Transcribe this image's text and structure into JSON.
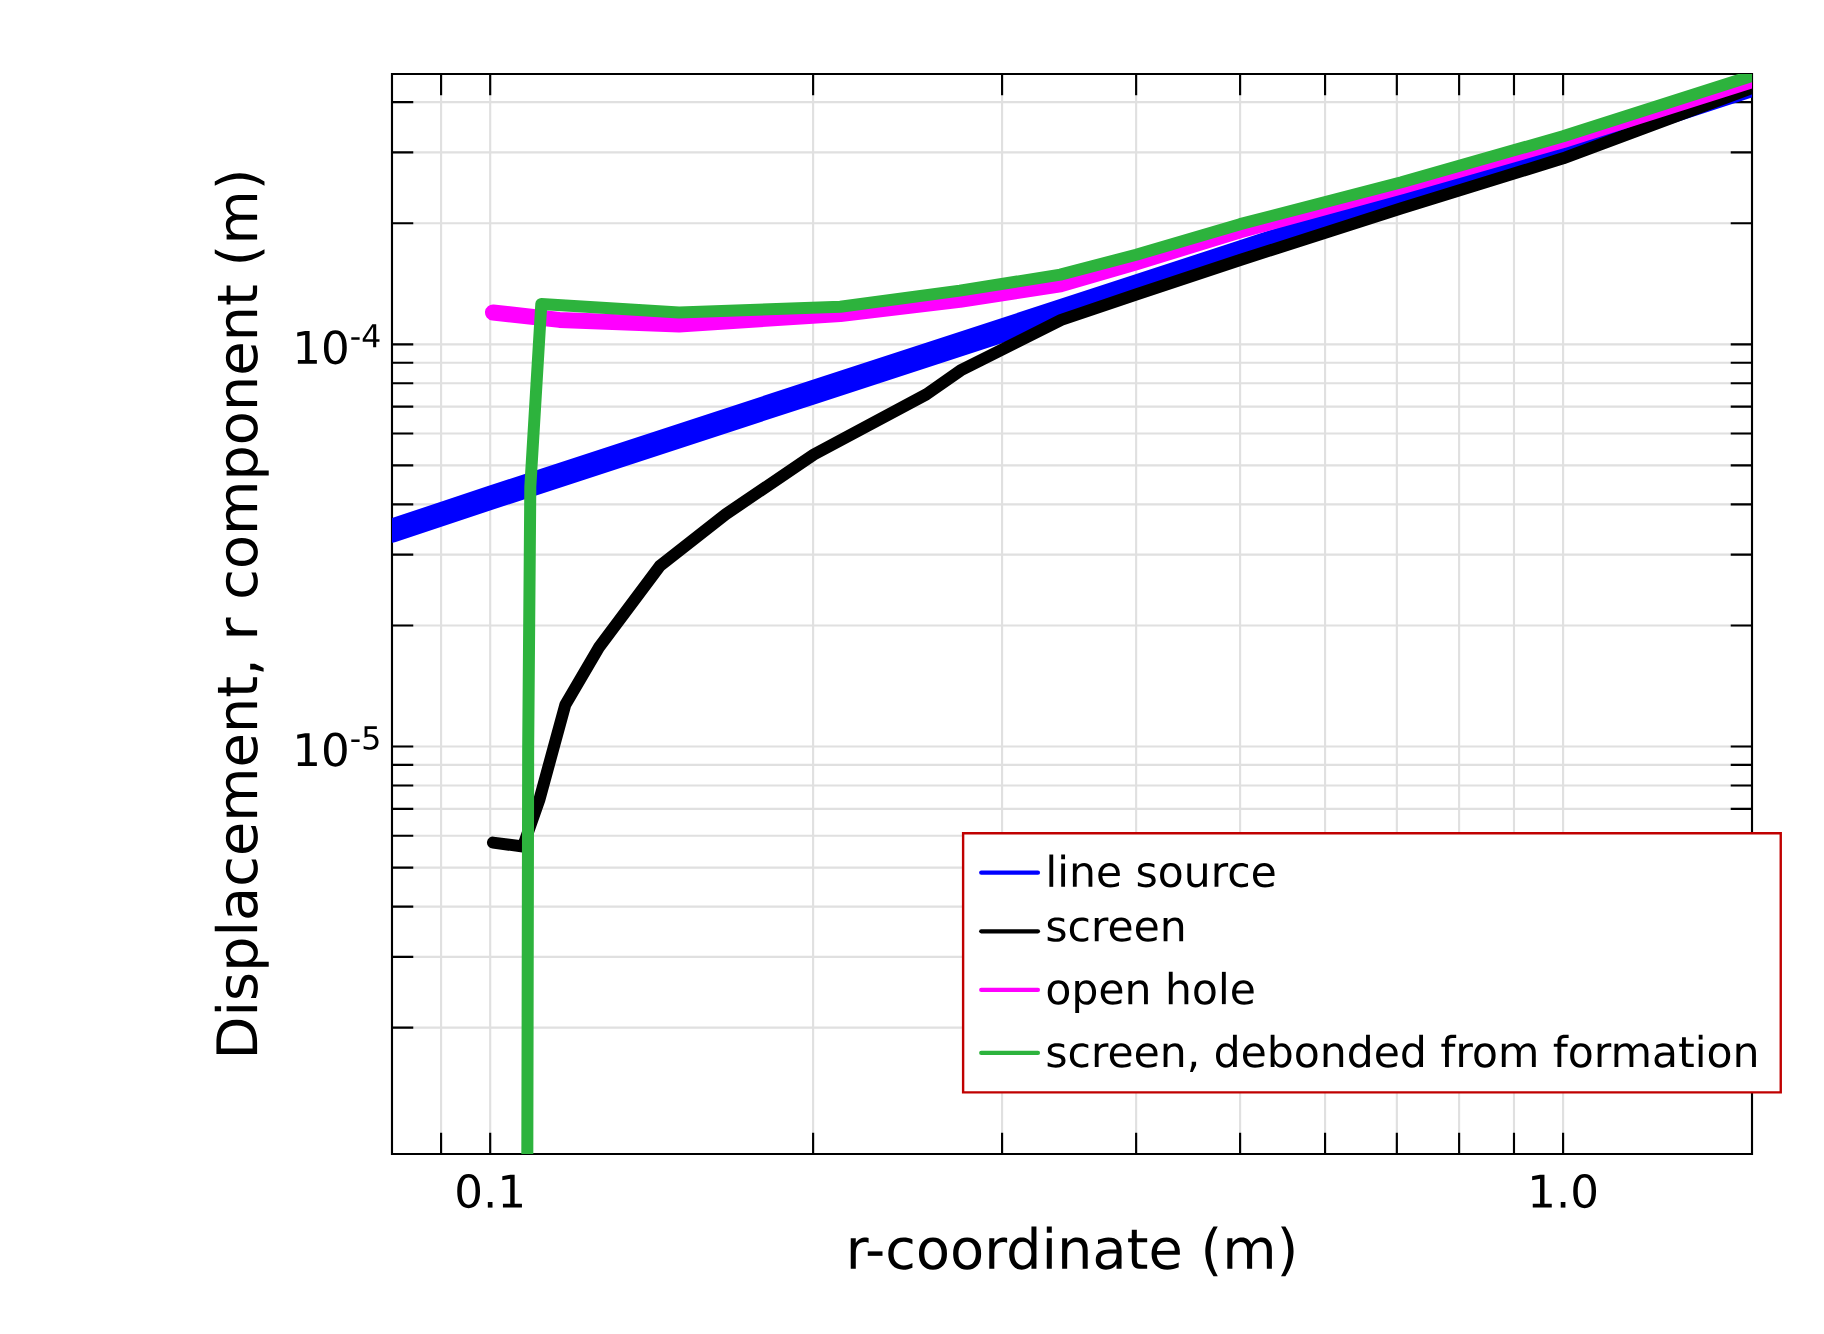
{
  "chart_data": {
    "type": "line",
    "xlabel": "r-coordinate (m)",
    "ylabel": "Displacement, r component (m)",
    "log": "xy",
    "grid": true,
    "legend": "bottom right",
    "marker": "none",
    "line_style": "solid",
    "xlim": [
      0.081,
      1.5
    ],
    "ylim": [
      9.7e-07,
      0.00047
    ],
    "xticks": [
      {
        "value": 0.09,
        "label": null
      },
      {
        "value": 0.1,
        "label": "0.1"
      },
      {
        "value": 0.2,
        "label": null
      },
      {
        "value": 0.3,
        "label": null
      },
      {
        "value": 0.4,
        "label": null
      },
      {
        "value": 0.5,
        "label": null
      },
      {
        "value": 0.6,
        "label": null
      },
      {
        "value": 0.7,
        "label": null
      },
      {
        "value": 0.8,
        "label": null
      },
      {
        "value": 0.9,
        "label": null
      },
      {
        "value": 1.0,
        "label": "1.0"
      }
    ],
    "yticks": [
      {
        "value": 2e-06,
        "label": null
      },
      {
        "value": 3e-06,
        "label": null
      },
      {
        "value": 4e-06,
        "label": null
      },
      {
        "value": 5e-06,
        "label": null
      },
      {
        "value": 6e-06,
        "label": null
      },
      {
        "value": 7e-06,
        "label": null
      },
      {
        "value": 8e-06,
        "label": null
      },
      {
        "value": 9e-06,
        "label": null
      },
      {
        "value": 1e-05,
        "label": "10$^{-5}$"
      },
      {
        "value": 2e-05,
        "label": null
      },
      {
        "value": 3e-05,
        "label": null
      },
      {
        "value": 4e-05,
        "label": null
      },
      {
        "value": 5e-05,
        "label": null
      },
      {
        "value": 6e-05,
        "label": null
      },
      {
        "value": 7e-05,
        "label": null
      },
      {
        "value": 8e-05,
        "label": null
      },
      {
        "value": 9e-05,
        "label": null
      },
      {
        "value": 0.0001,
        "label": "10$^{-4}$"
      },
      {
        "value": 0.0002,
        "label": null
      },
      {
        "value": 0.0003,
        "label": null
      },
      {
        "value": 0.0004,
        "label": null
      }
    ],
    "series": [
      {
        "name": "line source",
        "color": "#0000ff",
        "x": [
          0.081,
          0.1,
          0.2,
          0.5,
          1.0,
          1.5
        ],
        "values": [
          3.44e-05,
          4.15e-05,
          7.6e-05,
          0.000169,
          0.00031,
          0.000442
        ]
      },
      {
        "name": "screen",
        "color": "#000000",
        "x": [
          0.1006,
          0.1073,
          0.1111,
          0.1175,
          0.1264,
          0.1439,
          0.1658,
          0.2003,
          0.255,
          0.2744,
          0.3406,
          0.4,
          0.5,
          0.707,
          1.0,
          1.5
        ],
        "values": [
          5.77e-06,
          5.64e-06,
          7.35e-06,
          1.27e-05,
          1.77e-05,
          2.81e-05,
          3.78e-05,
          5.32e-05,
          7.51e-05,
          8.61e-05,
          0.000115,
          0.000133,
          0.000162,
          0.000218,
          0.00029,
          0.000434
        ]
      },
      {
        "name": "open hole",
        "color": "#ff00ff",
        "x": [
          0.1006,
          0.116,
          0.15,
          0.212,
          0.274,
          0.34,
          0.4,
          0.5,
          0.707,
          1.0,
          1.5
        ],
        "values": [
          0.00012,
          0.000115,
          0.000112,
          0.000119,
          0.000129,
          0.000141,
          0.00016,
          0.000192,
          0.000247,
          0.000322,
          0.000454
        ]
      },
      {
        "name": "screen, debonded from formation",
        "color": "#2db33d",
        "x": [
          0.1083,
          0.1085,
          0.109,
          0.1116,
          0.15,
          0.212,
          0.274,
          0.34,
          0.4,
          0.5,
          0.707,
          1.0,
          1.5
        ],
        "values": [
          9.7e-07,
          1e-05,
          4.43e-05,
          0.000126,
          0.00012,
          0.000124,
          0.000136,
          0.000149,
          0.000167,
          0.000199,
          0.000253,
          0.000329,
          0.000465
        ]
      }
    ]
  }
}
